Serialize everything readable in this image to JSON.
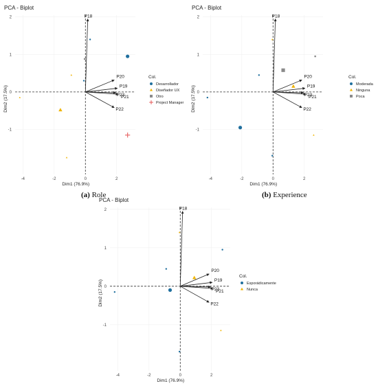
{
  "panels": [
    {
      "title": "PCA - Biplot",
      "caption_letter": "(a)",
      "caption_text": "Role",
      "legend_title": "Col.",
      "chart_data": {
        "type": "scatter",
        "title": "PCA - Biplot",
        "xlabel": "Dim1 (76.9%)",
        "ylabel": "Dim2 (17.5%)",
        "xlim": [
          -4.5,
          3.2
        ],
        "ylim": [
          -2.2,
          2.05
        ],
        "xticks": [
          -4,
          -2,
          0,
          2
        ],
        "yticks": [
          -1,
          0,
          1,
          2
        ],
        "legend_position": "right",
        "grid": true,
        "series": [
          {
            "name": "Desarrollador",
            "shape": "circle",
            "color": "#1f6f9e",
            "points": [
              {
                "x": 2.7,
                "y": 0.95,
                "large": true
              },
              {
                "x": 0.3,
                "y": 1.4
              },
              {
                "x": -0.1,
                "y": 0.3
              }
            ]
          },
          {
            "name": "Diseñador UX",
            "shape": "triangle",
            "color": "#f0b400",
            "points": [
              {
                "x": -1.6,
                "y": -0.48,
                "large": true
              },
              {
                "x": -0.9,
                "y": 0.45
              },
              {
                "x": -4.2,
                "y": -0.15
              },
              {
                "x": -1.2,
                "y": -1.75
              }
            ]
          },
          {
            "name": "Otro",
            "shape": "square",
            "color": "#8a8a8a",
            "points": [
              {
                "x": -0.05,
                "y": 0.88
              }
            ]
          },
          {
            "name": "Project Manager",
            "shape": "cross",
            "color": "#e86a6a",
            "points": [
              {
                "x": 2.7,
                "y": -1.15,
                "large": true
              }
            ]
          }
        ],
        "vectors": [
          {
            "label": "P18",
            "x": 0.15,
            "y": 1.95
          },
          {
            "label": "P20",
            "x": 1.85,
            "y": 0.32
          },
          {
            "label": "P19",
            "x": 2.05,
            "y": 0.1
          },
          {
            "label": "P23",
            "x": 1.95,
            "y": -0.02
          },
          {
            "label": "P21",
            "x": 2.1,
            "y": -0.06
          },
          {
            "label": "P22",
            "x": 1.85,
            "y": -0.42
          }
        ]
      }
    },
    {
      "title": "PCA - Biplot",
      "caption_letter": "(b)",
      "caption_text": "Experience",
      "legend_title": "Col.",
      "chart_data": {
        "type": "scatter",
        "title": "PCA - Biplot",
        "xlabel": "Dim1 (76.9%)",
        "ylabel": "Dim2 (17.5%)",
        "xlim": [
          -4.5,
          3.2
        ],
        "ylim": [
          -2.2,
          2.05
        ],
        "xticks": [
          -4,
          -2,
          0,
          2
        ],
        "yticks": [
          -1,
          0,
          1,
          2
        ],
        "legend_position": "right",
        "grid": true,
        "series": [
          {
            "name": "Moderada",
            "shape": "circle",
            "color": "#1f6f9e",
            "points": [
              {
                "x": -2.1,
                "y": -0.95,
                "large": true
              },
              {
                "x": -4.2,
                "y": -0.15
              },
              {
                "x": -0.05,
                "y": -1.7
              },
              {
                "x": -0.9,
                "y": 0.45
              }
            ]
          },
          {
            "name": "Ninguna",
            "shape": "triangle",
            "color": "#f0b400",
            "points": [
              {
                "x": 1.3,
                "y": 0.15,
                "large": true
              },
              {
                "x": 2.6,
                "y": -1.15
              },
              {
                "x": -0.05,
                "y": 1.4
              }
            ]
          },
          {
            "name": "Poca",
            "shape": "square",
            "color": "#8a8a8a",
            "points": [
              {
                "x": 0.65,
                "y": 0.58,
                "large": true
              },
              {
                "x": 2.7,
                "y": 0.95
              }
            ]
          }
        ],
        "vectors": [
          {
            "label": "P18",
            "x": 0.15,
            "y": 1.95
          },
          {
            "label": "P20",
            "x": 1.85,
            "y": 0.32
          },
          {
            "label": "P19",
            "x": 2.05,
            "y": 0.1
          },
          {
            "label": "P23",
            "x": 1.95,
            "y": -0.02
          },
          {
            "label": "P21",
            "x": 2.1,
            "y": -0.06
          },
          {
            "label": "P22",
            "x": 1.85,
            "y": -0.42
          }
        ]
      }
    },
    {
      "title": "PCA - Biplot",
      "caption_letter": "",
      "caption_text": "",
      "legend_title": "Col.",
      "chart_data": {
        "type": "scatter",
        "title": "PCA - Biplot",
        "xlabel": "Dim1 (76.9%)",
        "ylabel": "Dim2 (17.5%)",
        "xlim": [
          -4.5,
          3.2
        ],
        "ylim": [
          -2.2,
          2.05
        ],
        "xticks": [
          -4,
          -2,
          0,
          2
        ],
        "yticks": [
          -1,
          0,
          1,
          2
        ],
        "legend_position": "right",
        "grid": true,
        "series": [
          {
            "name": "Esporádicamente",
            "shape": "circle",
            "color": "#1f6f9e",
            "points": [
              {
                "x": -0.65,
                "y": -0.1,
                "large": true
              },
              {
                "x": -4.2,
                "y": -0.15
              },
              {
                "x": -0.05,
                "y": -1.7
              },
              {
                "x": -0.9,
                "y": 0.45
              },
              {
                "x": 2.7,
                "y": 0.95
              }
            ]
          },
          {
            "name": "Nunca",
            "shape": "triangle",
            "color": "#f0b400",
            "points": [
              {
                "x": 0.9,
                "y": 0.22,
                "large": true
              },
              {
                "x": 2.6,
                "y": -1.15
              },
              {
                "x": -0.05,
                "y": 1.4
              }
            ]
          }
        ],
        "vectors": [
          {
            "label": "P18",
            "x": 0.15,
            "y": 1.95
          },
          {
            "label": "P20",
            "x": 1.85,
            "y": 0.32
          },
          {
            "label": "P19",
            "x": 2.05,
            "y": 0.1
          },
          {
            "label": "P23",
            "x": 1.95,
            "y": -0.02
          },
          {
            "label": "P21",
            "x": 2.1,
            "y": -0.06
          },
          {
            "label": "P22",
            "x": 1.85,
            "y": -0.42
          }
        ]
      }
    }
  ]
}
